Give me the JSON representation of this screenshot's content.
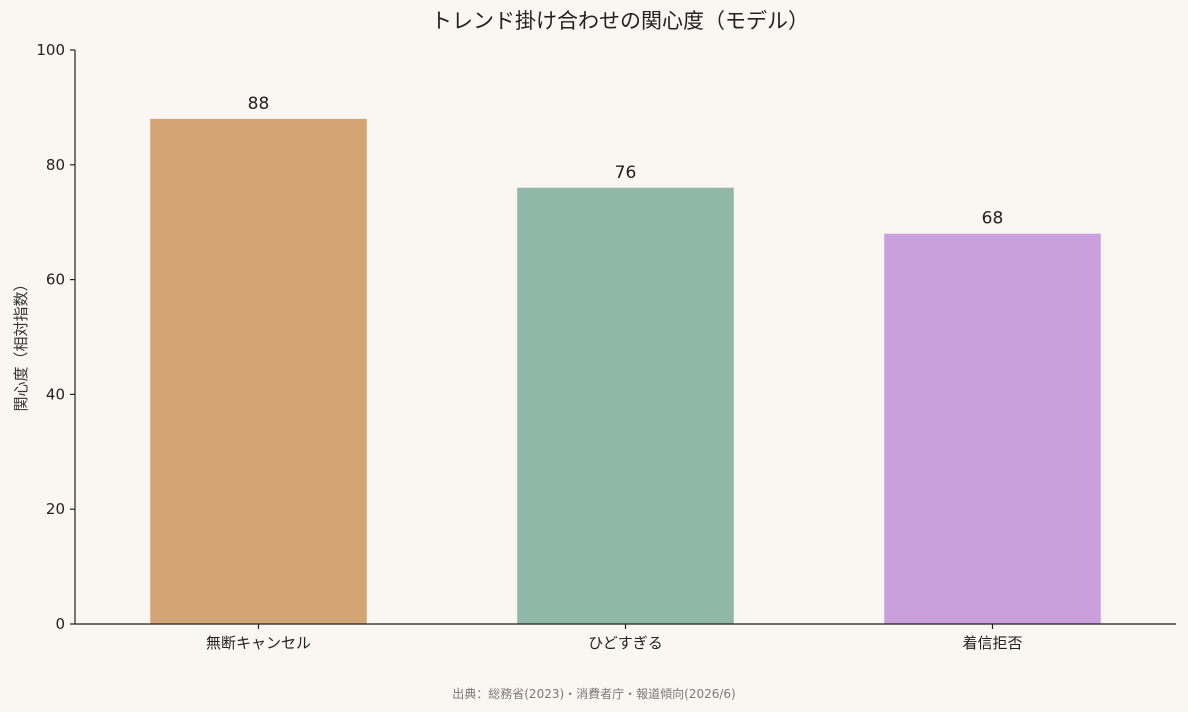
{
  "chart_data": {
    "type": "bar",
    "title": "トレンド掛け合わせの関心度（モデル）",
    "xlabel": "",
    "ylabel": "関心度（相対指数）",
    "categories": [
      "無断キャンセル",
      "ひどすぎる",
      "着信拒否"
    ],
    "values": [
      88,
      76,
      68
    ],
    "value_labels": [
      "88",
      "76",
      "68"
    ],
    "colors": [
      "#d4a574",
      "#8fb8a8",
      "#c9a0dc"
    ],
    "ylim": [
      0,
      100
    ],
    "yticks": [
      0,
      20,
      40,
      60,
      80,
      100
    ],
    "ytick_labels": [
      "0",
      "20",
      "40",
      "60",
      "80",
      "100"
    ],
    "grid": false,
    "legend": "none"
  },
  "footer": {
    "source": "出典：総務省(2023)・消費者庁・報道傾向(2026/6)"
  }
}
